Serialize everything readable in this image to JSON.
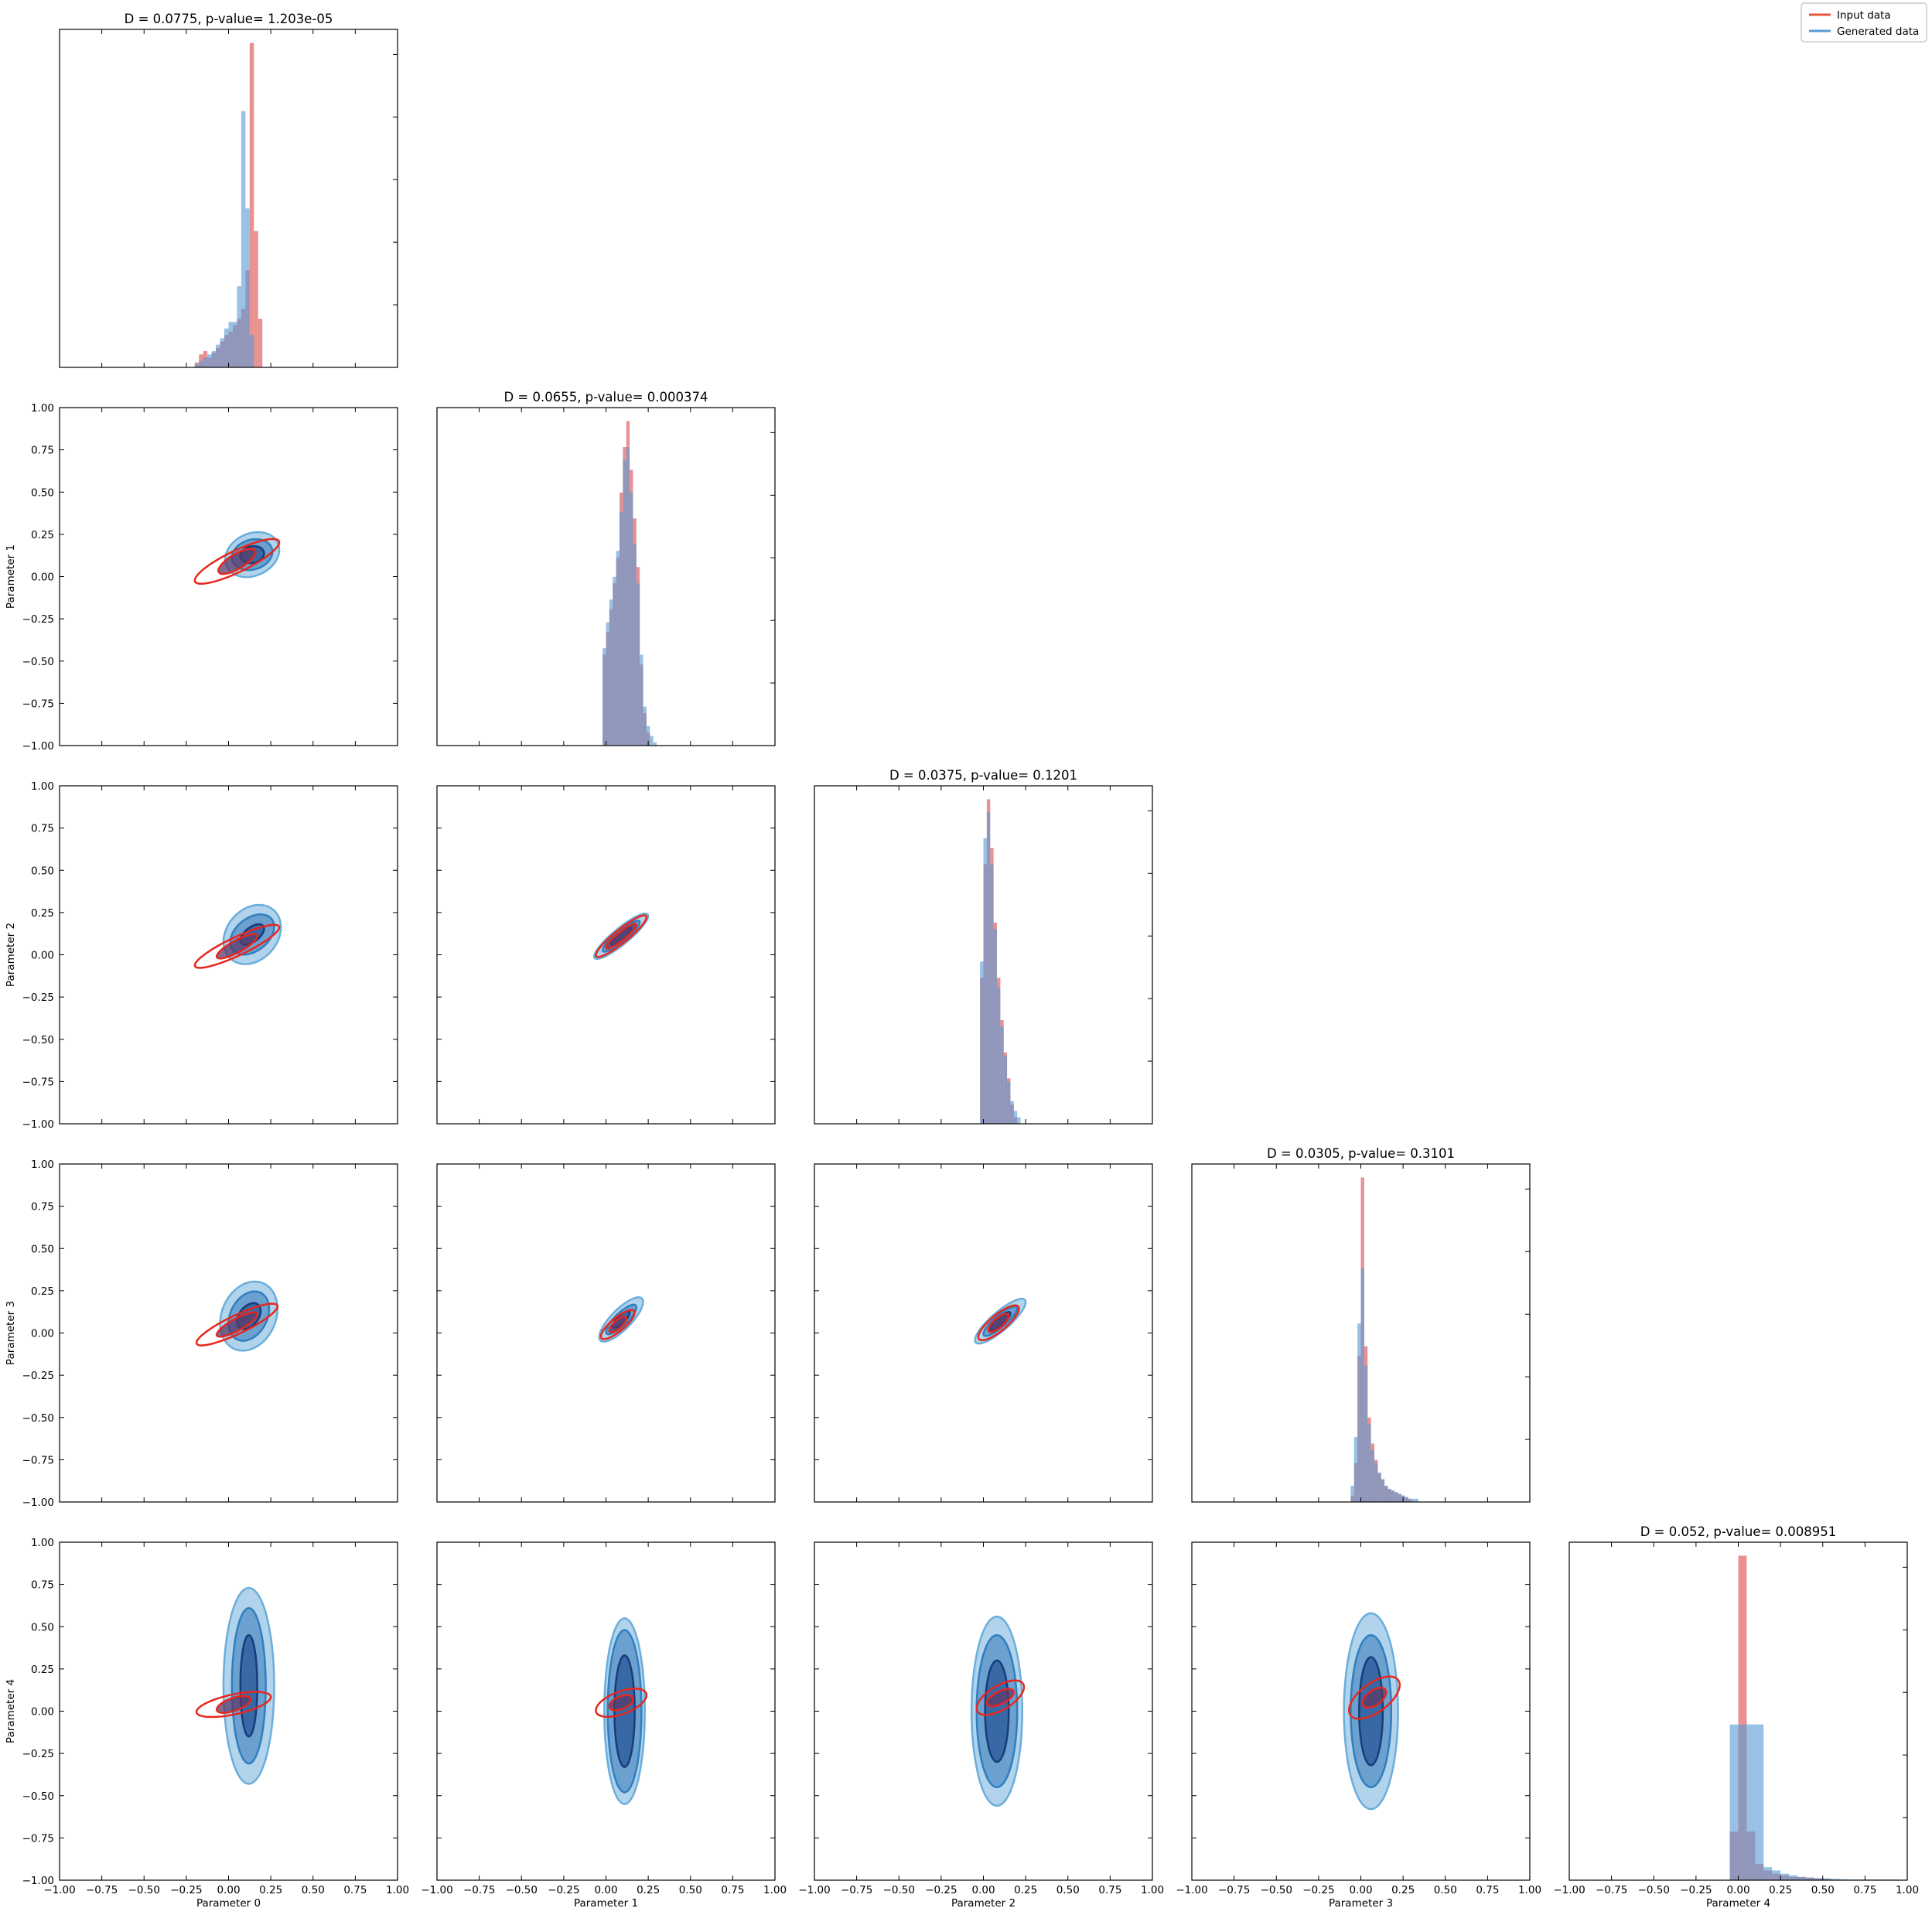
{
  "chart_data": {
    "type": "corner",
    "parameters": [
      "Parameter 0",
      "Parameter 1",
      "Parameter 2",
      "Parameter 3",
      "Parameter 4"
    ],
    "axis_range": [
      -1.0,
      1.0
    ],
    "ticks": [
      "−1.00",
      "−0.75",
      "−0.50",
      "−0.25",
      "0.00",
      "0.25",
      "0.50",
      "0.75",
      "1.00"
    ],
    "tick_values": [
      -1.0,
      -0.75,
      -0.5,
      -0.25,
      0.0,
      0.25,
      0.5,
      0.75,
      1.0
    ],
    "legend": {
      "position": "top-right",
      "entries": [
        {
          "label": "Input data",
          "color": "#e8553e"
        },
        {
          "label": "Generated data",
          "color": "#5a9bd5"
        }
      ]
    },
    "colors": {
      "input_hist": "#e06666",
      "generated_hist": "#5b9bd5",
      "input_contour": "#e8261c",
      "generated_contour": "#1f6fb8",
      "generated_fill_outer": "#9ec8e6",
      "generated_fill_mid": "#5a93c8",
      "generated_fill_inner": "#2c5a9a",
      "overlap_fill": "#5b3a6a"
    },
    "diagonal": [
      {
        "param": 0,
        "title": "D = 0.0775, p-value= 1.203e-05",
        "bin_width": 0.025,
        "input": {
          "start": -0.2,
          "values": [
            0.015,
            0.04,
            0.05,
            0.03,
            0.045,
            0.06,
            0.08,
            0.1,
            0.11,
            0.13,
            0.15,
            0.18,
            0.3,
            1.0,
            0.42,
            0.15
          ]
        },
        "generated": {
          "start": -0.2,
          "values": [
            0.01,
            0.02,
            0.03,
            0.04,
            0.05,
            0.07,
            0.09,
            0.12,
            0.14,
            0.14,
            0.25,
            0.79,
            0.49,
            0.1,
            0.0,
            0.0
          ]
        }
      },
      {
        "param": 1,
        "title": "D = 0.0655, p-value= 0.000374",
        "bin_width": 0.02,
        "input": {
          "start": -0.02,
          "values": [
            0.28,
            0.35,
            0.42,
            0.5,
            0.58,
            0.78,
            0.92,
            1.0,
            0.85,
            0.7,
            0.55,
            0.25,
            0.1,
            0.04
          ]
        },
        "generated": {
          "start": -0.02,
          "values": [
            0.3,
            0.38,
            0.45,
            0.52,
            0.6,
            0.72,
            0.88,
            0.92,
            0.78,
            0.62,
            0.5,
            0.28,
            0.12,
            0.06,
            0.03,
            0.01
          ]
        }
      },
      {
        "param": 2,
        "title": "D = 0.0375, p-value= 0.1201",
        "bin_width": 0.02,
        "input": {
          "start": -0.02,
          "values": [
            0.45,
            0.8,
            1.0,
            0.85,
            0.62,
            0.45,
            0.32,
            0.22,
            0.14,
            0.06,
            0.02
          ]
        },
        "generated": {
          "start": -0.02,
          "values": [
            0.5,
            0.88,
            0.96,
            0.8,
            0.6,
            0.42,
            0.3,
            0.21,
            0.13,
            0.07,
            0.04,
            0.02
          ]
        }
      },
      {
        "param": 3,
        "title": "D = 0.0305, p-value= 0.3101",
        "bin_width": 0.02,
        "input": {
          "start": -0.06,
          "values": [
            0.02,
            0.12,
            0.45,
            1.0,
            0.48,
            0.26,
            0.18,
            0.13,
            0.09,
            0.07,
            0.05,
            0.04,
            0.035,
            0.03,
            0.025,
            0.02,
            0.015,
            0.01
          ]
        },
        "generated": {
          "start": -0.06,
          "values": [
            0.05,
            0.2,
            0.55,
            0.72,
            0.42,
            0.24,
            0.16,
            0.12,
            0.09,
            0.07,
            0.05,
            0.04,
            0.035,
            0.03,
            0.025,
            0.02,
            0.015,
            0.01,
            0.01,
            0.01
          ]
        }
      },
      {
        "param": 4,
        "title": "D = 0.052, p-value= 0.008951",
        "bin_width": 0.05,
        "input": {
          "start": -0.05,
          "values": [
            0.15,
            1.0,
            0.15,
            0.05,
            0.03,
            0.02,
            0.015,
            0.01,
            0.01,
            0.008,
            0.006,
            0.005
          ]
        },
        "generated": {
          "start": -0.05,
          "values": [
            0.48,
            0.48,
            0.48,
            0.48,
            0.04,
            0.03,
            0.02,
            0.015,
            0.01,
            0.008,
            0.006,
            0.005,
            0.004,
            0.003,
            0.002,
            0.002,
            0.002,
            0.002,
            0.002,
            0.002
          ]
        }
      }
    ],
    "off_diagonal": [
      {
        "x": 0,
        "y": 1,
        "generated": {
          "center": [
            0.14,
            0.13
          ],
          "levels": [
            [
              0.16,
              0.13,
              0.18
            ],
            [
              0.12,
              0.09,
              0.14
            ],
            [
              0.07,
              0.05,
              0.1
            ]
          ],
          "tilt": 0.55
        },
        "input": {
          "center": [
            0.05,
            0.09
          ],
          "levels": [
            [
              0.25,
              0.07,
              0.45
            ],
            [
              0.11,
              0.05,
              0.5
            ]
          ],
          "tilt": 0.5
        }
      },
      {
        "x": 0,
        "y": 2,
        "generated": {
          "center": [
            0.14,
            0.12
          ],
          "levels": [
            [
              0.17,
              0.17,
              0.25
            ],
            [
              0.13,
              0.11,
              0.35
            ],
            [
              0.07,
              0.05,
              0.5
            ]
          ],
          "tilt": 0.5
        },
        "input": {
          "center": [
            0.05,
            0.05
          ],
          "levels": [
            [
              0.25,
              0.06,
              0.45
            ],
            [
              0.12,
              0.04,
              0.5
            ]
          ],
          "tilt": 0.5
        }
      },
      {
        "x": 0,
        "y": 3,
        "generated": {
          "center": [
            0.12,
            0.1
          ],
          "levels": [
            [
              0.17,
              0.2,
              0.25
            ],
            [
              0.12,
              0.14,
              0.35
            ],
            [
              0.07,
              0.07,
              0.45
            ]
          ],
          "tilt": 0.5
        },
        "input": {
          "center": [
            0.05,
            0.05
          ],
          "levels": [
            [
              0.24,
              0.06,
              0.45
            ],
            [
              0.12,
              0.04,
              0.5
            ]
          ],
          "tilt": 0.4
        }
      },
      {
        "x": 1,
        "y": 2,
        "generated": {
          "center": [
            0.09,
            0.11
          ],
          "levels": [
            [
              0.16,
              0.06,
              0.75
            ],
            [
              0.11,
              0.04,
              0.75
            ],
            [
              0.06,
              0.025,
              0.75
            ]
          ],
          "tilt": 0.0
        },
        "input": {
          "center": [
            0.09,
            0.11
          ],
          "levels": [
            [
              0.15,
              0.05,
              0.75
            ],
            [
              0.09,
              0.03,
              0.75
            ]
          ],
          "tilt": 0.0
        }
      },
      {
        "x": 1,
        "y": 3,
        "generated": {
          "center": [
            0.09,
            0.08
          ],
          "levels": [
            [
              0.13,
              0.08,
              0.8
            ],
            [
              0.09,
              0.05,
              0.8
            ],
            [
              0.05,
              0.03,
              0.8
            ]
          ],
          "tilt": 0.0
        },
        "input": {
          "center": [
            0.07,
            0.05
          ],
          "levels": [
            [
              0.1,
              0.05,
              0.7
            ],
            [
              0.05,
              0.03,
              0.7
            ]
          ],
          "tilt": 0.0
        }
      },
      {
        "x": 2,
        "y": 3,
        "generated": {
          "center": [
            0.1,
            0.07
          ],
          "levels": [
            [
              0.15,
              0.07,
              0.75
            ],
            [
              0.1,
              0.045,
              0.75
            ],
            [
              0.06,
              0.03,
              0.75
            ]
          ],
          "tilt": 0.0
        },
        "input": {
          "center": [
            0.09,
            0.06
          ],
          "levels": [
            [
              0.12,
              0.06,
              0.7
            ],
            [
              0.06,
              0.035,
              0.7
            ]
          ],
          "tilt": 0.0
        }
      },
      {
        "x": 0,
        "y": 4,
        "generated": {
          "center": [
            0.12,
            0.15
          ],
          "levels": [
            [
              0.15,
              0.58,
              0.0
            ],
            [
              0.1,
              0.46,
              0.0
            ],
            [
              0.05,
              0.3,
              0.0
            ]
          ],
          "tilt": 0.0
        },
        "input": {
          "center": [
            0.03,
            0.04
          ],
          "levels": [
            [
              0.22,
              0.06,
              0.2
            ],
            [
              0.1,
              0.04,
              0.3
            ]
          ],
          "tilt": 0.0
        }
      },
      {
        "x": 1,
        "y": 4,
        "generated": {
          "center": [
            0.11,
            0.0
          ],
          "levels": [
            [
              0.12,
              0.55,
              0.0
            ],
            [
              0.1,
              0.48,
              0.0
            ],
            [
              0.06,
              0.33,
              0.0
            ]
          ],
          "tilt": 0.0
        },
        "input": {
          "center": [
            0.09,
            0.05
          ],
          "levels": [
            [
              0.15,
              0.07,
              0.3
            ],
            [
              0.07,
              0.04,
              0.3
            ]
          ],
          "tilt": 0.0
        }
      },
      {
        "x": 2,
        "y": 4,
        "generated": {
          "center": [
            0.08,
            0.0
          ],
          "levels": [
            [
              0.15,
              0.56,
              0.0
            ],
            [
              0.12,
              0.45,
              0.0
            ],
            [
              0.07,
              0.3,
              0.0
            ]
          ],
          "tilt": 0.0
        },
        "input": {
          "center": [
            0.1,
            0.08
          ],
          "levels": [
            [
              0.14,
              0.08,
              0.45
            ],
            [
              0.08,
              0.04,
              0.4
            ]
          ],
          "tilt": 0.0
        }
      },
      {
        "x": 3,
        "y": 4,
        "generated": {
          "center": [
            0.06,
            0.0
          ],
          "levels": [
            [
              0.16,
              0.58,
              0.0
            ],
            [
              0.12,
              0.45,
              0.0
            ],
            [
              0.07,
              0.32,
              0.0
            ]
          ],
          "tilt": 0.0
        },
        "input": {
          "center": [
            0.08,
            0.08
          ],
          "levels": [
            [
              0.15,
              0.1,
              0.5
            ],
            [
              0.07,
              0.05,
              0.45
            ]
          ],
          "tilt": 0.0
        }
      }
    ]
  }
}
